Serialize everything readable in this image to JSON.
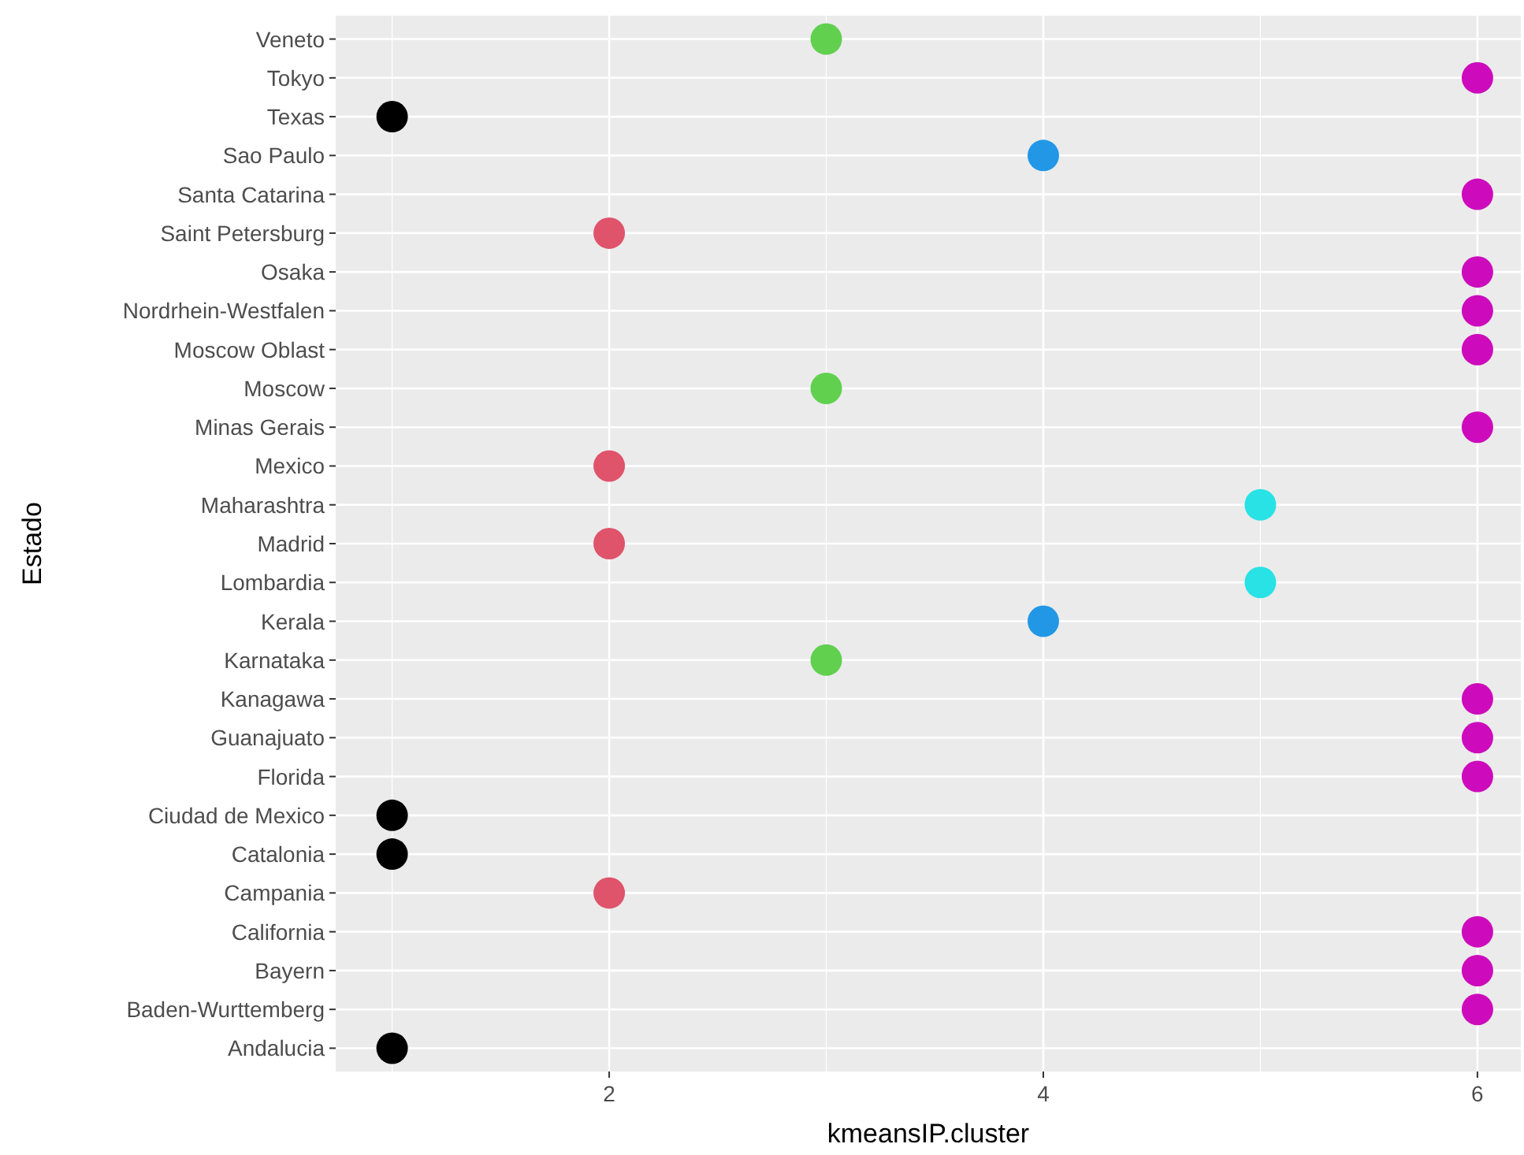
{
  "chart_data": {
    "type": "scatter",
    "orientation": "horizontal",
    "xlabel": "kmeansIP.cluster",
    "ylabel": "Estado",
    "categories": [
      "Veneto",
      "Tokyo",
      "Texas",
      "Sao Paulo",
      "Santa Catarina",
      "Saint Petersburg",
      "Osaka",
      "Nordrhein-Westfalen",
      "Moscow Oblast",
      "Moscow",
      "Minas Gerais",
      "Mexico",
      "Maharashtra",
      "Madrid",
      "Lombardia",
      "Kerala",
      "Karnataka",
      "Kanagawa",
      "Guanajuato",
      "Florida",
      "Ciudad de Mexico",
      "Catalonia",
      "Campania",
      "California",
      "Bayern",
      "Baden-Wurttemberg",
      "Andalucia"
    ],
    "values": [
      3,
      6,
      1,
      4,
      6,
      2,
      6,
      6,
      6,
      3,
      6,
      2,
      5,
      2,
      5,
      4,
      3,
      6,
      6,
      6,
      1,
      1,
      2,
      6,
      6,
      6,
      1
    ],
    "colors": [
      "#61d04f",
      "#cd0bbc",
      "#000000",
      "#2297e6",
      "#cd0bbc",
      "#df536b",
      "#cd0bbc",
      "#cd0bbc",
      "#cd0bbc",
      "#61d04f",
      "#cd0bbc",
      "#df536b",
      "#28e2e5",
      "#df536b",
      "#28e2e5",
      "#2297e6",
      "#61d04f",
      "#cd0bbc",
      "#cd0bbc",
      "#cd0bbc",
      "#000000",
      "#000000",
      "#df536b",
      "#cd0bbc",
      "#cd0bbc",
      "#cd0bbc",
      "#000000"
    ],
    "xlim": [
      0.74,
      6.2
    ],
    "xticks": [
      2,
      4,
      6
    ],
    "grid": true,
    "marker": "circle"
  }
}
